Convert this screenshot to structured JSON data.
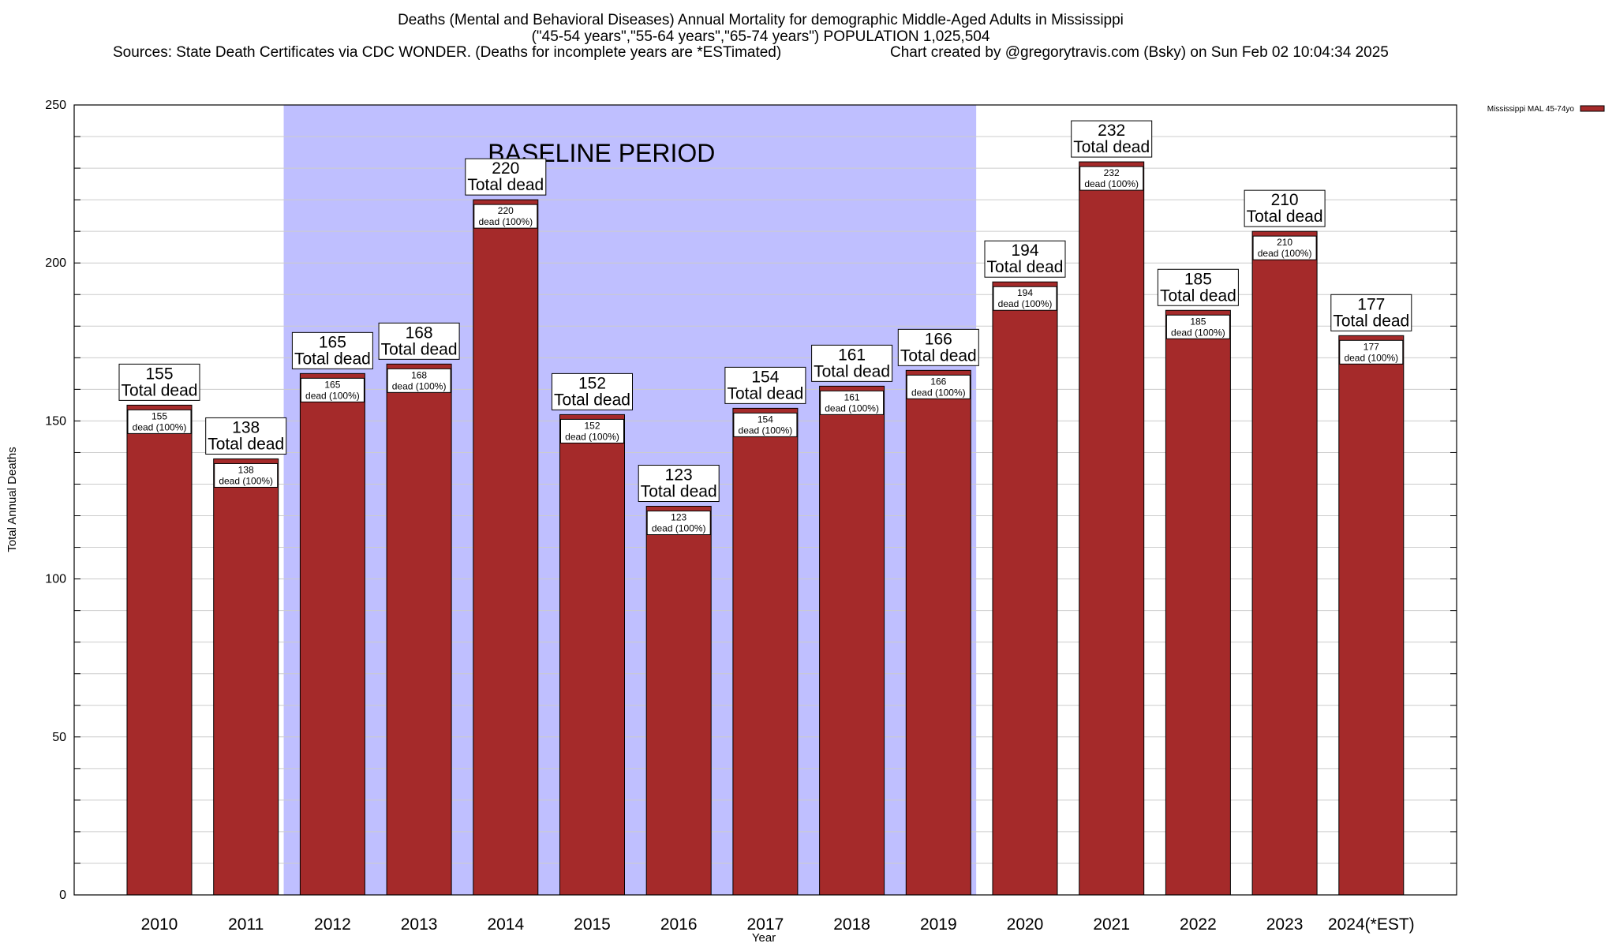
{
  "chart_data": {
    "type": "bar",
    "title": "Deaths (Mental and Behavioral Diseases) Annual Mortality for demographic Middle-Aged Adults in Mississippi",
    "subtitle": "(\"45-54 years\",\"55-64 years\",\"65-74 years\") POPULATION 1,025,504",
    "source_note": "Sources: State Death Certificates via CDC WONDER. (Deaths for incomplete years are *ESTimated)",
    "credit": "Chart created by @gregorytravis.com (Bsky) on Sun Feb 02 10:04:34 2025",
    "xlabel": "Year",
    "ylabel": "Total Annual Deaths",
    "ylim": [
      0,
      250
    ],
    "yticks": [
      "0",
      "50",
      "100",
      "150",
      "200",
      "250"
    ],
    "grid": true,
    "legend_position": "top-right",
    "categories": [
      "2010",
      "2011",
      "2012",
      "2013",
      "2014",
      "2015",
      "2016",
      "2017",
      "2018",
      "2019",
      "2020",
      "2021",
      "2022",
      "2023",
      "2024(*EST)"
    ],
    "series": [
      {
        "name": "Mississippi MAL 45-74yo",
        "color": "#a52a2a",
        "values": [
          155,
          138,
          165,
          168,
          220,
          152,
          123,
          154,
          161,
          166,
          194,
          232,
          185,
          210,
          177
        ]
      }
    ],
    "bar_labels_total": [
      "155",
      "138",
      "165",
      "168",
      "220",
      "152",
      "123",
      "154",
      "161",
      "166",
      "194",
      "232",
      "185",
      "210",
      "177"
    ],
    "total_dead_label": "Total dead",
    "inner_labels": [
      "155",
      "138",
      "165",
      "168",
      "220",
      "152",
      "123",
      "154",
      "161",
      "166",
      "194",
      "232",
      "185",
      "210",
      "177"
    ],
    "inner_label_suffix": "dead (100%)",
    "baseline_period": {
      "label": "BASELINE PERIOD",
      "start": "2012",
      "end": "2019",
      "color": "#bfbfff"
    }
  }
}
